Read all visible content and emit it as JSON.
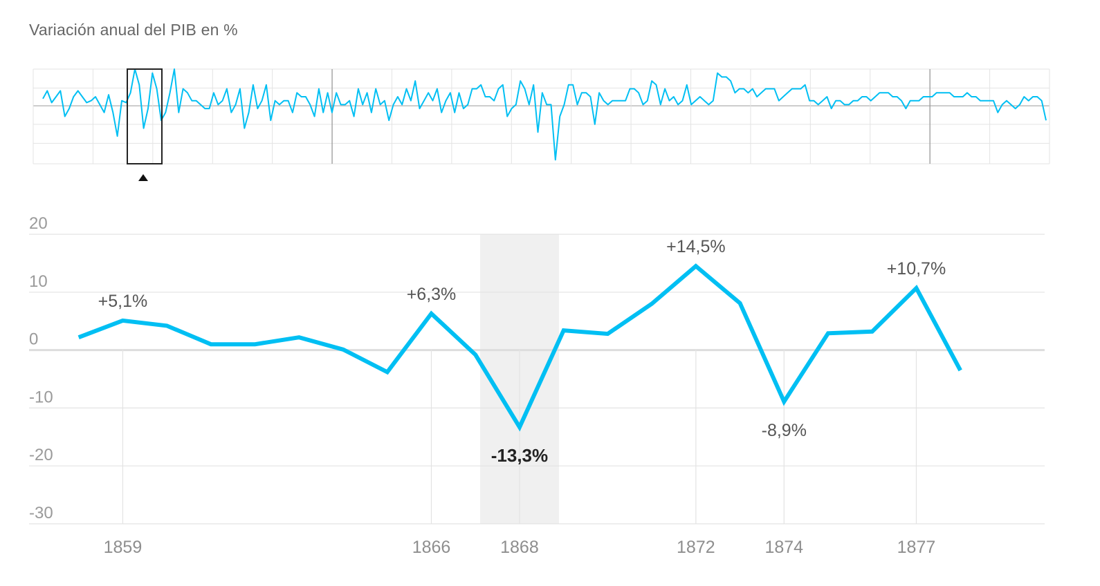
{
  "title": "Variación anual del PIB en %",
  "colors": {
    "line": "#00bff3",
    "grid": "#e3e3e3",
    "zero": "#dddddd",
    "highlight": "#f0f0f0",
    "brush": "#222222"
  },
  "chart_data": [
    {
      "type": "line",
      "role": "overview",
      "title": "",
      "values": [
        1.5,
        3.5,
        0.5,
        2,
        3.5,
        -3,
        -1,
        2,
        3.5,
        2,
        0.5,
        1,
        2,
        0,
        -2,
        2.5,
        -2,
        -8,
        1,
        0.5,
        3,
        9,
        5,
        -6,
        -1,
        8,
        4,
        -4,
        -2,
        3,
        9,
        -2,
        4,
        3,
        1,
        1,
        0,
        -1,
        -1,
        3,
        0,
        1,
        4,
        -2,
        0,
        4,
        -6,
        -2,
        5,
        -1,
        1,
        5,
        -4,
        1,
        0,
        1,
        1,
        -2,
        3,
        2,
        2,
        0,
        -3,
        4,
        -2,
        3,
        -2,
        3,
        0,
        0,
        1,
        -3,
        4,
        0,
        3,
        -2,
        4,
        0,
        1,
        -4,
        0,
        2,
        0,
        4,
        1,
        6,
        -1,
        1,
        3,
        1,
        4,
        -2,
        1,
        3,
        -2,
        3,
        -1,
        0,
        4,
        4,
        5,
        2,
        2,
        1,
        4,
        5,
        -3,
        -1,
        0,
        6,
        4,
        0,
        5,
        -7,
        3,
        0,
        0,
        -14,
        -3,
        0,
        5,
        5,
        0,
        3,
        3,
        2,
        -5,
        3,
        1,
        0,
        1,
        1,
        1,
        1,
        4,
        4,
        3,
        0,
        1,
        6,
        5,
        0,
        4,
        1,
        2,
        0,
        1,
        5,
        0,
        1,
        2,
        1,
        0,
        1,
        8,
        7,
        7,
        6,
        3,
        4,
        4,
        3,
        4,
        2,
        3,
        4,
        4,
        4,
        1,
        2,
        3,
        4,
        4,
        4,
        5,
        1,
        1,
        0,
        1,
        2,
        -1,
        1,
        1,
        0,
        0,
        1,
        1,
        2,
        2,
        1,
        2,
        3,
        3,
        3,
        2,
        2,
        1,
        -1,
        1,
        1,
        1,
        2,
        2,
        2,
        3,
        3,
        3,
        3,
        2,
        2,
        2,
        3,
        2,
        2,
        1,
        1,
        1,
        1,
        -2,
        0,
        1,
        0,
        -1,
        0,
        2,
        1,
        2,
        2,
        1,
        -4
      ]
    },
    {
      "type": "line",
      "role": "detail",
      "x": [
        1858,
        1859,
        1860,
        1861,
        1862,
        1863,
        1864,
        1865,
        1866,
        1867,
        1868,
        1869,
        1870,
        1871,
        1872,
        1873,
        1874,
        1875,
        1876,
        1877,
        1878
      ],
      "values": [
        2.2,
        5.1,
        4.2,
        1.0,
        1.0,
        2.2,
        0.1,
        -3.8,
        6.3,
        -0.8,
        -13.3,
        3.4,
        2.8,
        8.0,
        14.5,
        8.1,
        -8.9,
        2.9,
        3.2,
        10.7,
        -3.5
      ],
      "title": "",
      "xlabel": "",
      "ylabel": "",
      "ylim": [
        -30,
        20
      ],
      "yticks": [
        "20",
        "10",
        "0",
        "-10",
        "-20",
        "-30"
      ],
      "xticks": [
        "1859",
        "1866",
        "1868",
        "1872",
        "1874",
        "1877"
      ],
      "highlight_year": 1868,
      "grid": true,
      "annotations": [
        {
          "label": "+5,1%",
          "x": 1859
        },
        {
          "label": "+6,3%",
          "x": 1866
        },
        {
          "label": "-13,3%",
          "x": 1868,
          "strong": true
        },
        {
          "label": "+14,5%",
          "x": 1872
        },
        {
          "label": "-8,9%",
          "x": 1874
        },
        {
          "label": "+10,7%",
          "x": 1877
        }
      ]
    }
  ]
}
